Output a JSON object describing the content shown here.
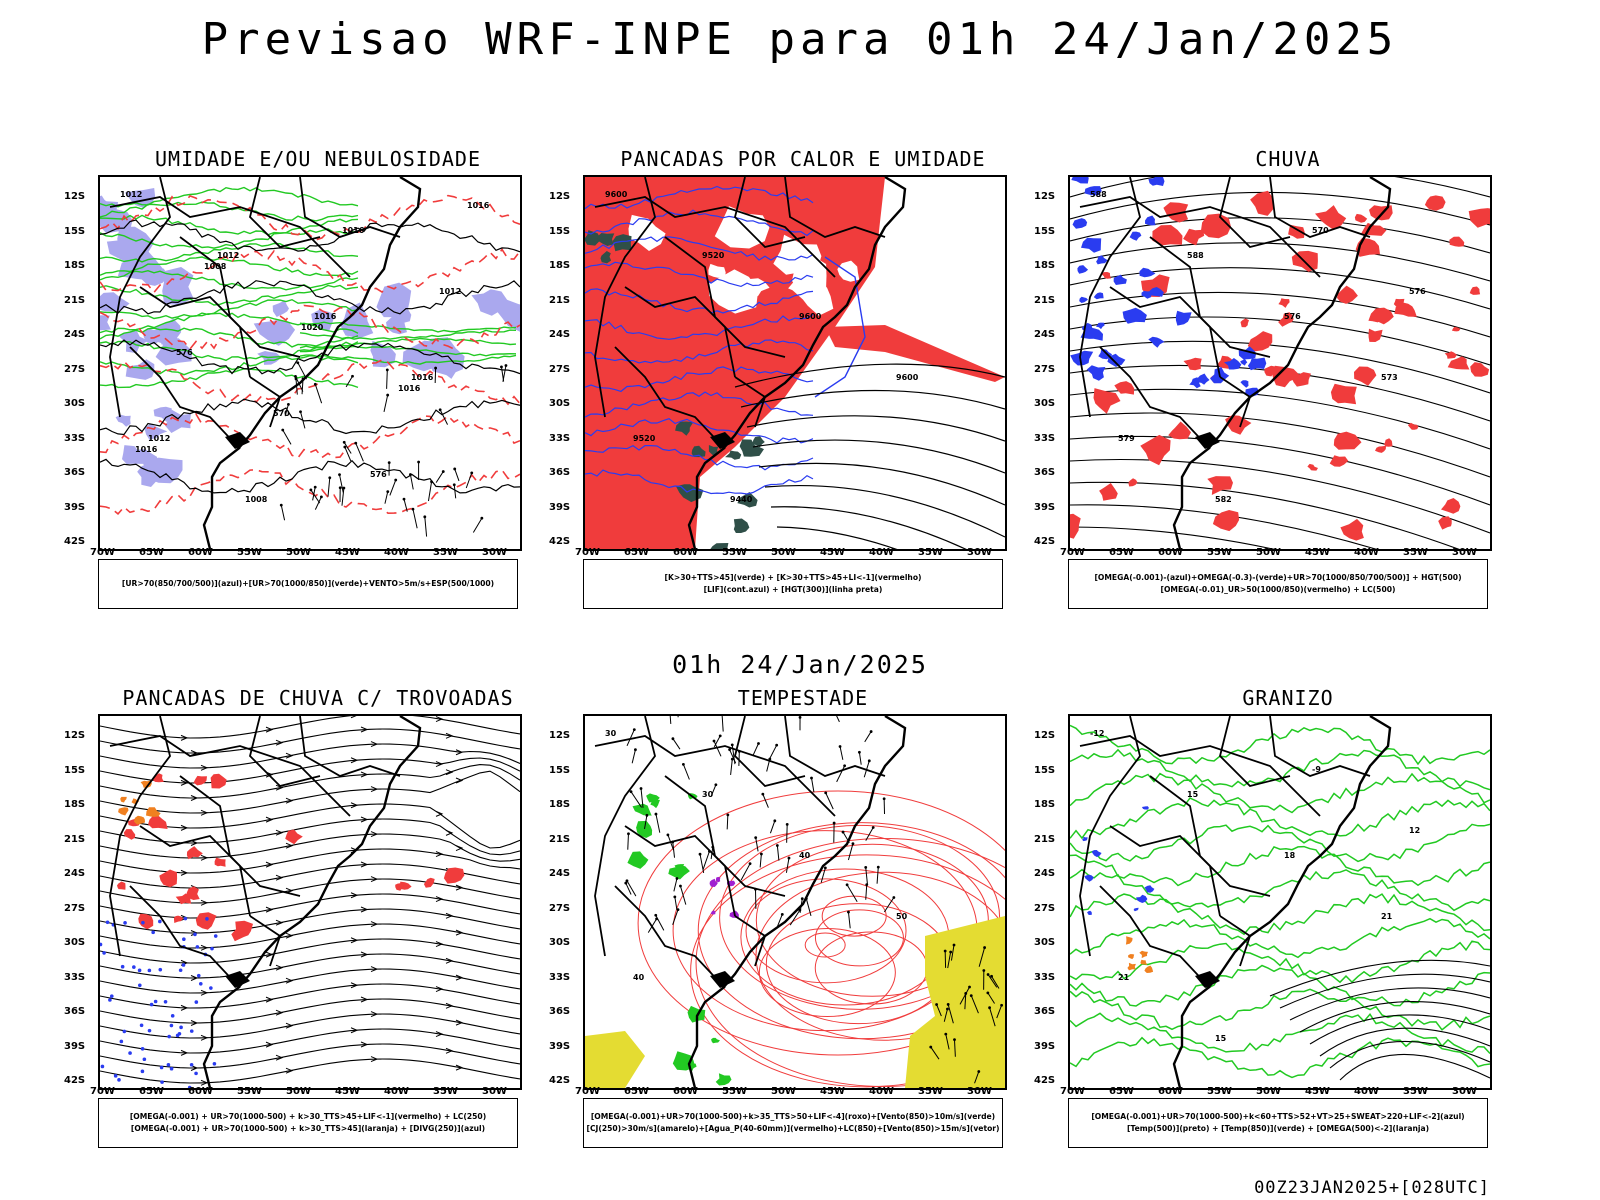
{
  "header": {
    "title": "Previsao WRF-INPE  para 01h 24/Jan/2025",
    "subtitle": "01h 24/Jan/2025",
    "footer": "00Z23JAN2025+[028UTC]"
  },
  "axes": {
    "lat_labels": [
      "12S",
      "15S",
      "18S",
      "21S",
      "24S",
      "27S",
      "30S",
      "33S",
      "36S",
      "39S",
      "42S"
    ],
    "lon_labels": [
      "70W",
      "65W",
      "60W",
      "55W",
      "50W",
      "45W",
      "40W",
      "35W",
      "30W"
    ]
  },
  "colors": {
    "green": "#22c922",
    "red": "#f03c3c",
    "blue": "#2a3cf0",
    "lavender": "#aaa8ee",
    "darkteal": "#2f4f48",
    "yellow": "#e4dc32",
    "orange": "#f08020",
    "purple": "#a020d0",
    "black": "#000000"
  },
  "panels": [
    {
      "title": "UMIDADE E/OU NEBULOSIDADE",
      "legend": [
        "[UR>70(850/700/500)](azul)+[UR>70(1000/850)](verde)+VENTO>5m/s+ESP(500/1000)"
      ],
      "labels": [
        "1012",
        "1012",
        "1016",
        "1016",
        "1012",
        "1008",
        "1016",
        "1012",
        "576",
        "570",
        "576",
        "1016",
        "1008",
        "1020",
        "1016",
        "1016"
      ]
    },
    {
      "title": "PANCADAS POR CALOR E UMIDADE",
      "legend": [
        "[K>30+TTS>45](verde) + [K>30+TTS>45+LI<-1](vermelho)",
        "[LIF](cont.azul) + [HGT(300)](linha preta)"
      ],
      "labels": [
        "9600",
        "9520",
        "9600",
        "9600",
        "9520",
        "9440"
      ]
    },
    {
      "title": "CHUVA",
      "legend": [
        "[OMEGA(-0.001)-(azul)+OMEGA(-0.3)-(verde)+UR>70(1000/850/700/500)] + HGT(500)",
        "[OMEGA(-0.01)_UR>50(1000/850)(vermelho) + LC(500)"
      ],
      "labels": [
        "588",
        "588",
        "576",
        "573",
        "579",
        "582",
        "570",
        "576"
      ]
    },
    {
      "title": "PANCADAS DE CHUVA C/ TROVOADAS",
      "legend": [
        "[OMEGA(-0.001) + UR>70(1000-500) + k>30_TTS>45+LIF<-1](vermelho) + LC(250)",
        "[OMEGA(-0.001) + UR>70(1000-500) + k>30_TTS>45](laranja) + [DIVG(250)](azul)"
      ],
      "labels": []
    },
    {
      "title": "TEMPESTADE",
      "legend": [
        "[OMEGA(-0.001)+UR>70(1000-500)+k>35_TTS>50+LIF<-4](roxo)+[Vento(850)>10m/s](verde)",
        "[CJ(250)>30m/s](amarelo)+[Agua_P(40-60mm)](vermelho)+LC(850)+[Vento(850)>15m/s](vetor)"
      ],
      "labels": [
        "30",
        "30",
        "40",
        "50",
        "40"
      ]
    },
    {
      "title": "GRANIZO",
      "legend": [
        "[OMEGA(-0.001)+UR>70(1000-500)+k<60+TTS>52+VT>25+SWEAT>220+LIF<-2](azul)",
        "[Temp(500)](preto) + [Temp(850)](verde) + [OMEGA(500)<-2](laranja)"
      ],
      "labels": [
        "-12",
        "15",
        "18",
        "21",
        "21",
        "15",
        "-9",
        "12"
      ]
    }
  ]
}
